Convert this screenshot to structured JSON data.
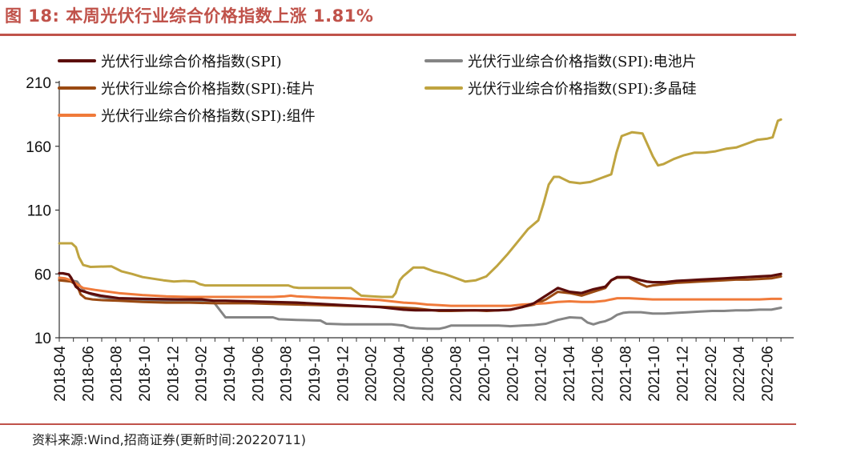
{
  "figure": {
    "title": "图 18:  本周光伏行业综合价格指数上涨 1.81%",
    "source": "资料来源:Wind,招商证券(更新时间:20220711)"
  },
  "chart_data": {
    "type": "line",
    "title": "图 18:  本周光伏行业综合价格指数上涨 1.81%",
    "xlabel": "",
    "ylabel": "",
    "ylim": [
      10,
      210
    ],
    "yticks": [
      10,
      60,
      110,
      160,
      210
    ],
    "x_range": [
      "2018-04",
      "2022-07"
    ],
    "x_tick_labels": [
      "2018-04",
      "2018-06",
      "2018-08",
      "2018-10",
      "2018-12",
      "2019-02",
      "2019-04",
      "2019-06",
      "2019-08",
      "2019-10",
      "2019-12",
      "2020-02",
      "2020-04",
      "2020-06",
      "2020-08",
      "2020-10",
      "2020-12",
      "2021-02",
      "2021-04",
      "2021-06",
      "2021-08",
      "2021-10",
      "2021-12",
      "2022-02",
      "2022-04",
      "2022-06"
    ],
    "grid": false,
    "legend": "top",
    "series": [
      {
        "name": "光伏行业综合价格指数(SPI)",
        "color": "#5c0d0b",
        "points": [
          [
            0,
            60.5
          ],
          [
            0.3,
            60.5
          ],
          [
            0.8,
            59.5
          ],
          [
            1.0,
            57
          ],
          [
            1.4,
            50
          ],
          [
            1.8,
            47
          ],
          [
            2.5,
            45
          ],
          [
            3.5,
            43
          ],
          [
            5,
            41
          ],
          [
            7,
            40.5
          ],
          [
            10,
            40
          ],
          [
            12,
            40
          ],
          [
            13,
            39
          ],
          [
            14,
            39
          ],
          [
            16,
            38.5
          ],
          [
            18,
            38
          ],
          [
            20,
            37.5
          ],
          [
            22,
            36.5
          ],
          [
            24,
            35.5
          ],
          [
            25,
            35
          ],
          [
            26,
            34.5
          ],
          [
            27,
            34
          ],
          [
            28,
            33
          ],
          [
            29,
            32
          ],
          [
            30,
            31.5
          ],
          [
            31,
            31.5
          ],
          [
            32,
            31.5
          ],
          [
            33,
            31.5
          ],
          [
            34,
            31.5
          ],
          [
            35,
            31.5
          ],
          [
            36,
            31.5
          ],
          [
            37,
            31.5
          ],
          [
            38,
            32
          ],
          [
            39,
            34
          ],
          [
            40,
            37
          ],
          [
            41,
            43
          ],
          [
            42,
            49
          ],
          [
            43,
            46
          ],
          [
            44,
            45
          ],
          [
            45,
            48
          ],
          [
            45.5,
            49
          ],
          [
            46,
            50
          ],
          [
            46.5,
            55
          ],
          [
            47,
            57.5
          ],
          [
            48,
            57.5
          ],
          [
            49,
            55
          ],
          [
            49.5,
            54
          ],
          [
            50,
            53.5
          ],
          [
            51,
            53.5
          ],
          [
            52,
            54.5
          ],
          [
            53,
            55
          ],
          [
            54,
            55.5
          ],
          [
            55,
            56
          ],
          [
            56,
            56.5
          ],
          [
            57,
            57
          ],
          [
            58,
            57.5
          ],
          [
            59,
            58
          ],
          [
            60,
            58.5
          ],
          [
            60.8,
            60
          ]
        ]
      },
      {
        "name": "光伏行业综合价格指数(SPI):电池片",
        "color": "#858585",
        "points": [
          [
            0,
            56
          ],
          [
            0.5,
            55.5
          ],
          [
            1.0,
            55
          ],
          [
            1.5,
            54
          ],
          [
            1.8,
            50
          ],
          [
            2.2,
            46
          ],
          [
            2.7,
            44
          ],
          [
            3.5,
            42
          ],
          [
            5,
            40
          ],
          [
            7,
            39
          ],
          [
            10,
            39
          ],
          [
            12,
            38.5
          ],
          [
            13,
            38
          ],
          [
            14,
            26
          ],
          [
            16,
            26
          ],
          [
            18,
            26
          ],
          [
            18.5,
            24.5
          ],
          [
            20,
            24
          ],
          [
            22,
            23.5
          ],
          [
            22.5,
            21
          ],
          [
            24,
            20.5
          ],
          [
            26,
            20.5
          ],
          [
            28,
            20.5
          ],
          [
            29,
            19.5
          ],
          [
            29.5,
            18
          ],
          [
            30,
            17.5
          ],
          [
            31,
            17
          ],
          [
            32,
            17
          ],
          [
            32.5,
            18
          ],
          [
            33,
            19.5
          ],
          [
            35,
            19.5
          ],
          [
            36,
            19.5
          ],
          [
            37,
            19.5
          ],
          [
            38,
            19
          ],
          [
            39,
            19.5
          ],
          [
            40,
            20
          ],
          [
            41,
            21
          ],
          [
            42,
            24
          ],
          [
            43,
            26
          ],
          [
            44,
            25.5
          ],
          [
            44.5,
            22
          ],
          [
            45,
            20.5
          ],
          [
            45.5,
            22
          ],
          [
            46,
            23
          ],
          [
            46.5,
            25
          ],
          [
            47,
            28
          ],
          [
            47.5,
            29.5
          ],
          [
            48,
            30
          ],
          [
            49,
            30
          ],
          [
            50,
            29
          ],
          [
            51,
            29
          ],
          [
            52,
            29.5
          ],
          [
            53,
            30
          ],
          [
            54,
            30.5
          ],
          [
            55,
            31
          ],
          [
            56,
            31
          ],
          [
            57,
            31.5
          ],
          [
            58,
            31.5
          ],
          [
            59,
            32
          ],
          [
            60,
            32
          ],
          [
            60.8,
            33.5
          ]
        ]
      },
      {
        "name": "光伏行业综合价格指数(SPI):硅片",
        "color": "#9a4a12",
        "points": [
          [
            0,
            55
          ],
          [
            0.5,
            54.5
          ],
          [
            1.0,
            54
          ],
          [
            1.5,
            51
          ],
          [
            1.8,
            44
          ],
          [
            2.2,
            41
          ],
          [
            2.8,
            40
          ],
          [
            3.5,
            39.5
          ],
          [
            5,
            39
          ],
          [
            7,
            38
          ],
          [
            9,
            37.5
          ],
          [
            11,
            37.5
          ],
          [
            13,
            37
          ],
          [
            14,
            37
          ],
          [
            16,
            37
          ],
          [
            18,
            36.5
          ],
          [
            20,
            36
          ],
          [
            22,
            35.5
          ],
          [
            24,
            35
          ],
          [
            26,
            34.5
          ],
          [
            28,
            34
          ],
          [
            30,
            33
          ],
          [
            31,
            32
          ],
          [
            32,
            31
          ],
          [
            33,
            31
          ],
          [
            35,
            31.5
          ],
          [
            36,
            31
          ],
          [
            37,
            31.5
          ],
          [
            38,
            32
          ],
          [
            39,
            34
          ],
          [
            40,
            36
          ],
          [
            41,
            40
          ],
          [
            42,
            46
          ],
          [
            43,
            45
          ],
          [
            44,
            43
          ],
          [
            45,
            46
          ],
          [
            46,
            49
          ],
          [
            46.5,
            55
          ],
          [
            47,
            57
          ],
          [
            48,
            57
          ],
          [
            49,
            52
          ],
          [
            49.5,
            50
          ],
          [
            50,
            51
          ],
          [
            51,
            52
          ],
          [
            52,
            53
          ],
          [
            53,
            53.5
          ],
          [
            54,
            54
          ],
          [
            55,
            54.5
          ],
          [
            56,
            55
          ],
          [
            57,
            55.5
          ],
          [
            58,
            55.5
          ],
          [
            59,
            56
          ],
          [
            60,
            56.5
          ],
          [
            60.8,
            58
          ]
        ]
      },
      {
        "name": "光伏行业综合价格指数(SPI):多晶硅",
        "color": "#bfa440",
        "points": [
          [
            0,
            84
          ],
          [
            0.8,
            84
          ],
          [
            1.2,
            84
          ],
          [
            1.6,
            81
          ],
          [
            1.9,
            73
          ],
          [
            2.3,
            67
          ],
          [
            3,
            65.5
          ],
          [
            5,
            66
          ],
          [
            5.5,
            64
          ],
          [
            6,
            62
          ],
          [
            7,
            60
          ],
          [
            8,
            57.5
          ],
          [
            10,
            55
          ],
          [
            11,
            54
          ],
          [
            12,
            54.5
          ],
          [
            13,
            54
          ],
          [
            13.5,
            52
          ],
          [
            14,
            51
          ],
          [
            16,
            51
          ],
          [
            18,
            51
          ],
          [
            20,
            51
          ],
          [
            22,
            51
          ],
          [
            22.5,
            49.5
          ],
          [
            23,
            49
          ],
          [
            25,
            49
          ],
          [
            27,
            49
          ],
          [
            28,
            49
          ],
          [
            29,
            43
          ],
          [
            30,
            42.5
          ],
          [
            31,
            42
          ],
          [
            32,
            42
          ],
          [
            32.3,
            45
          ],
          [
            32.7,
            55
          ],
          [
            33,
            58
          ],
          [
            34,
            65
          ],
          [
            35,
            65
          ],
          [
            36,
            62
          ],
          [
            37,
            60
          ],
          [
            38,
            57
          ],
          [
            39,
            54
          ],
          [
            40,
            55
          ],
          [
            41,
            58
          ],
          [
            42,
            66
          ],
          [
            43,
            75
          ],
          [
            44,
            85
          ],
          [
            45,
            95
          ],
          [
            46,
            102
          ],
          [
            46.5,
            115
          ],
          [
            47,
            130
          ],
          [
            47.5,
            136
          ],
          [
            48,
            136
          ],
          [
            48.5,
            134
          ],
          [
            49,
            132
          ],
          [
            50,
            131
          ],
          [
            51,
            132
          ],
          [
            52,
            135
          ],
          [
            53,
            138
          ],
          [
            53.5,
            155
          ],
          [
            54,
            168
          ],
          [
            55,
            171
          ],
          [
            56,
            170
          ],
          [
            57,
            152
          ],
          [
            57.5,
            145
          ],
          [
            58,
            146
          ],
          [
            59,
            150
          ],
          [
            60,
            153
          ],
          [
            61,
            155
          ],
          [
            62,
            155
          ],
          [
            63,
            156
          ],
          [
            64,
            158
          ],
          [
            65,
            159
          ],
          [
            66,
            162
          ],
          [
            67,
            165
          ],
          [
            68,
            166
          ],
          [
            68.5,
            167
          ],
          [
            69,
            180
          ],
          [
            69.3,
            181
          ]
        ]
      },
      {
        "name": "光伏行业综合价格指数(SPI):组件",
        "color": "#f07a3a",
        "points": [
          [
            0,
            57
          ],
          [
            0.5,
            56.5
          ],
          [
            1,
            55
          ],
          [
            1.5,
            52
          ],
          [
            2,
            49
          ],
          [
            3,
            47.5
          ],
          [
            5,
            45
          ],
          [
            7,
            43.5
          ],
          [
            9,
            42.5
          ],
          [
            11,
            42
          ],
          [
            13,
            42
          ],
          [
            14,
            42
          ],
          [
            16,
            42
          ],
          [
            18,
            42
          ],
          [
            19,
            42.5
          ],
          [
            19.5,
            43
          ],
          [
            20,
            42.5
          ],
          [
            22,
            41.5
          ],
          [
            24,
            41
          ],
          [
            26,
            40
          ],
          [
            27,
            39.5
          ],
          [
            28,
            38.5
          ],
          [
            29,
            37.5
          ],
          [
            30,
            37
          ],
          [
            31,
            36
          ],
          [
            32,
            35.5
          ],
          [
            33,
            35
          ],
          [
            34,
            35
          ],
          [
            35,
            35
          ],
          [
            36,
            35
          ],
          [
            37,
            35
          ],
          [
            38,
            35
          ],
          [
            39,
            36
          ],
          [
            40,
            36.5
          ],
          [
            41,
            37
          ],
          [
            42,
            38
          ],
          [
            43,
            38.5
          ],
          [
            44,
            38
          ],
          [
            45,
            38
          ],
          [
            46,
            39
          ],
          [
            46.5,
            40
          ],
          [
            47,
            41
          ],
          [
            48,
            41
          ],
          [
            49,
            40.5
          ],
          [
            50,
            40
          ],
          [
            51,
            40
          ],
          [
            52,
            40
          ],
          [
            53,
            40
          ],
          [
            54,
            40
          ],
          [
            55,
            40
          ],
          [
            56,
            40
          ],
          [
            57,
            40
          ],
          [
            58,
            40
          ],
          [
            59,
            40
          ],
          [
            60,
            40.5
          ],
          [
            60.8,
            40.5
          ]
        ]
      }
    ]
  }
}
